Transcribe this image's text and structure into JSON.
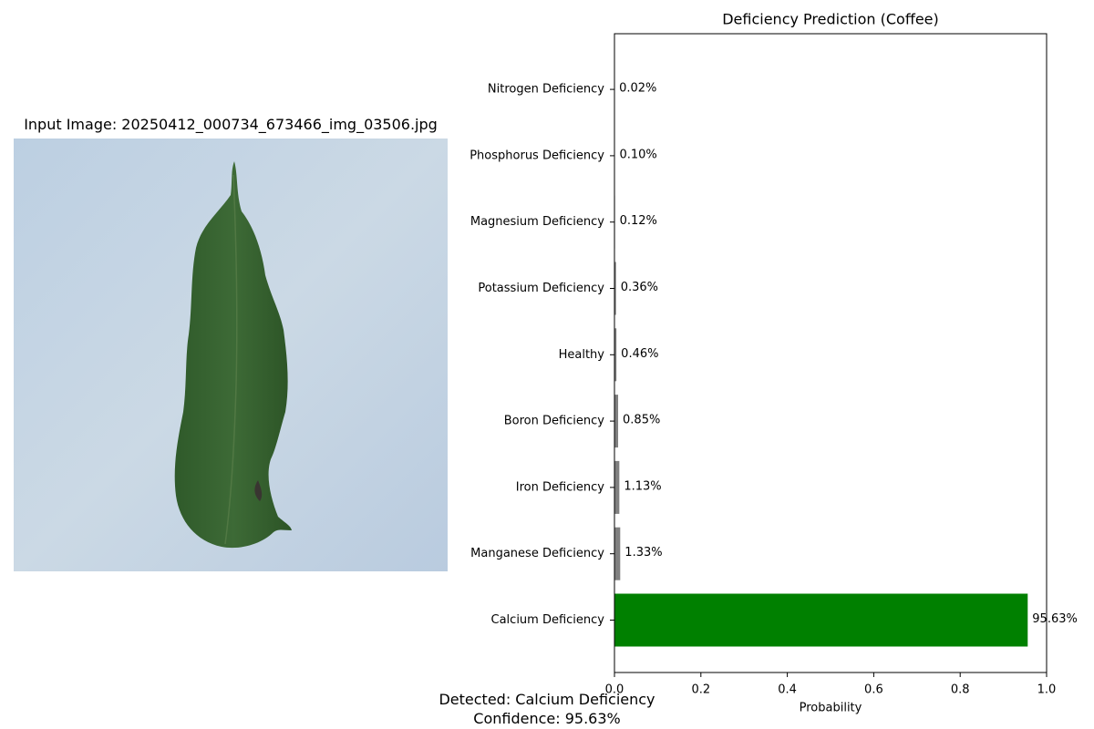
{
  "image_panel": {
    "title": "Input Image: 20250412_000734_673466_img_03506.jpg",
    "subject_icon": "coffee-leaf"
  },
  "footer": {
    "detected": "Detected: Calcium Deficiency",
    "confidence": "Confidence: 95.63%"
  },
  "colors": {
    "top_bar": "#008000",
    "other_bars": "#808080",
    "background_panel": "#c9d7e4"
  },
  "chart_data": {
    "type": "bar",
    "orientation": "horizontal",
    "title": "Deficiency Prediction (Coffee)",
    "xlabel": "Probability",
    "ylabel": "",
    "xlim": [
      0,
      1.0
    ],
    "xticks": [
      0.0,
      0.2,
      0.4,
      0.6,
      0.8,
      1.0
    ],
    "xtick_labels": [
      "0.0",
      "0.2",
      "0.4",
      "0.6",
      "0.8",
      "1.0"
    ],
    "grid": false,
    "categories": [
      "Calcium Deficiency",
      "Manganese Deficiency",
      "Iron Deficiency",
      "Boron Deficiency",
      "Healthy",
      "Potassium Deficiency",
      "Magnesium Deficiency",
      "Phosphorus Deficiency",
      "Nitrogen Deficiency"
    ],
    "values": [
      0.9563,
      0.0133,
      0.0113,
      0.0085,
      0.0046,
      0.0036,
      0.0012,
      0.001,
      0.0002
    ],
    "value_labels": [
      "95.63%",
      "1.33%",
      "1.13%",
      "0.85%",
      "0.46%",
      "0.36%",
      "0.12%",
      "0.10%",
      "0.02%"
    ]
  }
}
